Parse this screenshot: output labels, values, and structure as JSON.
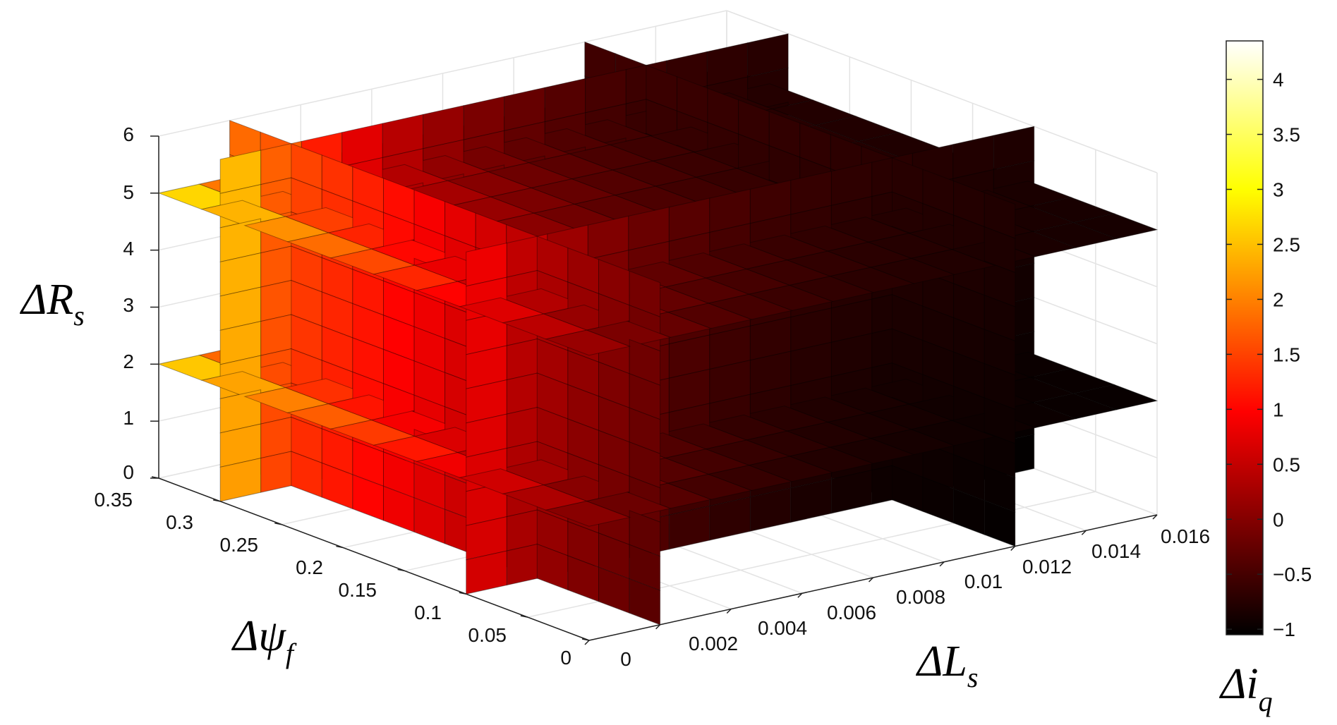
{
  "chart_data": {
    "type": "slice",
    "title": "",
    "xlabel": "ΔL",
    "xlabel_sub": "s",
    "ylabel": "Δψ",
    "ylabel_sub": "f",
    "zlabel": "ΔR",
    "zlabel_sub": "s",
    "colorbar_label": "Δi",
    "colorbar_label_sub": "q",
    "xlim": [
      0,
      0.016
    ],
    "ylim": [
      0,
      0.35
    ],
    "zlim": [
      0,
      6
    ],
    "x_ticks": [
      "0",
      "0.002",
      "0.004",
      "0.006",
      "0.008",
      "0.01",
      "0.012",
      "0.014",
      "0.016"
    ],
    "y_ticks": [
      "0",
      "0.05",
      "0.1",
      "0.15",
      "0.2",
      "0.25",
      "0.3",
      "0.35"
    ],
    "z_ticks": [
      "0",
      "1",
      "2",
      "3",
      "4",
      "5",
      "6"
    ],
    "colorbar_ticks": [
      "−1",
      "−0.5",
      "0",
      "0.5",
      "1",
      "1.5",
      "2",
      "2.5",
      "3",
      "3.5",
      "4"
    ],
    "colorbar_range": [
      -1.05,
      4.35
    ],
    "colormap": "hot",
    "grid": true,
    "slices_x": [
      0.002,
      0.012
    ],
    "slices_y": [
      0.1,
      0.3
    ],
    "slices_z": [
      2,
      5
    ]
  }
}
